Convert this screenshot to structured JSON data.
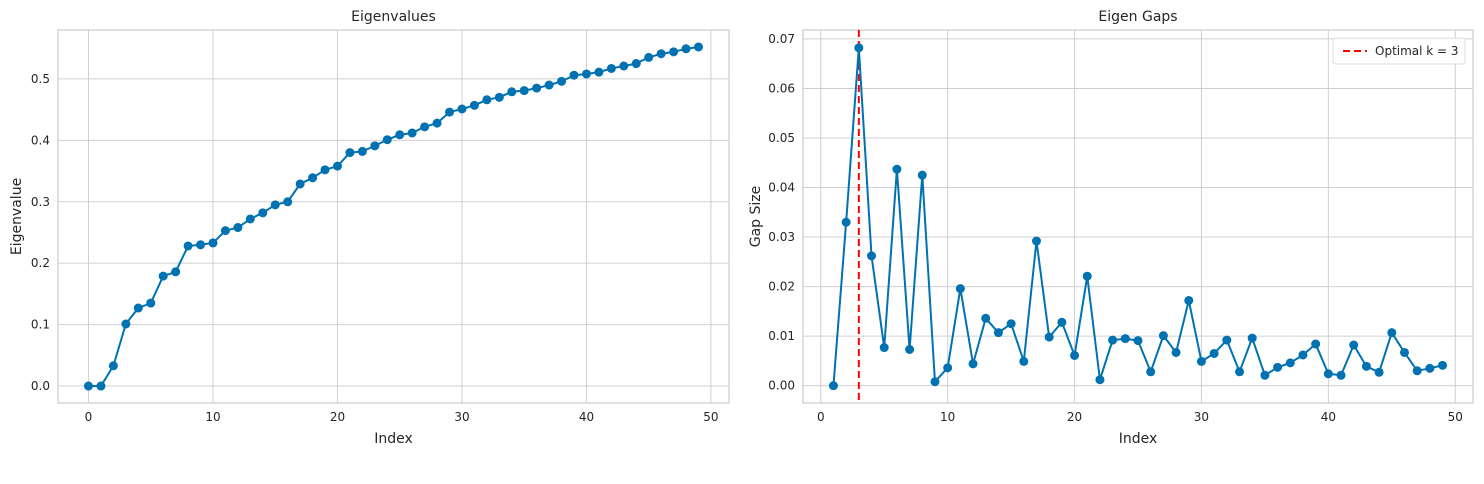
{
  "chart_data": [
    {
      "type": "line",
      "title": "Eigenvalues",
      "xlabel": "Index",
      "ylabel": "Eigenvalue",
      "xlim": [
        -2.45,
        51.45
      ],
      "ylim": [
        -0.0276,
        0.5796
      ],
      "xticks": [
        0,
        10,
        20,
        30,
        40,
        50
      ],
      "xtick_labels": [
        "0",
        "10",
        "20",
        "30",
        "40",
        "50"
      ],
      "yticks": [
        0.0,
        0.1,
        0.2,
        0.3,
        0.4,
        0.5
      ],
      "ytick_labels": [
        "0.0",
        "0.1",
        "0.2",
        "0.3",
        "0.4",
        "0.5"
      ],
      "grid": true,
      "series": [
        {
          "color": "#0072b2",
          "marker": "circle",
          "x": [
            0,
            1,
            2,
            3,
            4,
            5,
            6,
            7,
            8,
            9,
            10,
            11,
            12,
            13,
            14,
            15,
            16,
            17,
            18,
            19,
            20,
            21,
            22,
            23,
            24,
            25,
            26,
            27,
            28,
            29,
            30,
            31,
            32,
            33,
            34,
            35,
            36,
            37,
            38,
            39,
            40,
            41,
            42,
            43,
            44,
            45,
            46,
            47,
            48,
            49
          ],
          "y": [
            0.0,
            0.0,
            0.033,
            0.101,
            0.127,
            0.135,
            0.179,
            0.186,
            0.228,
            0.23,
            0.233,
            0.253,
            0.258,
            0.272,
            0.282,
            0.295,
            0.3,
            0.329,
            0.339,
            0.352,
            0.358,
            0.38,
            0.382,
            0.391,
            0.401,
            0.409,
            0.412,
            0.422,
            0.428,
            0.446,
            0.451,
            0.457,
            0.466,
            0.47,
            0.479,
            0.481,
            0.485,
            0.49,
            0.496,
            0.506,
            0.508,
            0.511,
            0.517,
            0.521,
            0.525,
            0.535,
            0.541,
            0.544,
            0.549,
            0.552
          ]
        }
      ]
    },
    {
      "type": "line",
      "title": "Eigen Gaps",
      "xlabel": "Index",
      "ylabel": "Gap Size",
      "xlim": [
        -1.4,
        51.4
      ],
      "ylim": [
        -0.0035,
        0.0718
      ],
      "xticks": [
        0,
        10,
        20,
        30,
        40,
        50
      ],
      "xtick_labels": [
        "0",
        "10",
        "20",
        "30",
        "40",
        "50"
      ],
      "yticks": [
        0.0,
        0.01,
        0.02,
        0.03,
        0.04,
        0.05,
        0.06,
        0.07
      ],
      "ytick_labels": [
        "0.00",
        "0.01",
        "0.02",
        "0.03",
        "0.04",
        "0.05",
        "0.06",
        "0.07"
      ],
      "grid": true,
      "legend_position": "top-right",
      "vline": {
        "x": 3,
        "label": "Optimal k = 3",
        "color": "#ff0000",
        "style": "dashed"
      },
      "series": [
        {
          "color": "#0072b2",
          "marker": "circle",
          "x": [
            1,
            2,
            3,
            4,
            5,
            6,
            7,
            8,
            9,
            10,
            11,
            12,
            13,
            14,
            15,
            16,
            17,
            18,
            19,
            20,
            21,
            22,
            23,
            24,
            25,
            26,
            27,
            28,
            29,
            30,
            31,
            32,
            33,
            34,
            35,
            36,
            37,
            38,
            39,
            40,
            41,
            42,
            43,
            44,
            45,
            46,
            47,
            48,
            49
          ],
          "y": [
            0.0,
            0.033,
            0.0682,
            0.0262,
            0.0077,
            0.0437,
            0.0073,
            0.0425,
            0.0008,
            0.0036,
            0.0196,
            0.0044,
            0.0136,
            0.0107,
            0.0125,
            0.0049,
            0.0292,
            0.0098,
            0.0128,
            0.0061,
            0.0221,
            0.0012,
            0.0092,
            0.0095,
            0.0091,
            0.0028,
            0.0101,
            0.0067,
            0.0172,
            0.0049,
            0.0065,
            0.0092,
            0.0028,
            0.0096,
            0.0021,
            0.0037,
            0.0046,
            0.0062,
            0.0084,
            0.0024,
            0.0021,
            0.0082,
            0.0039,
            0.0027,
            0.0107,
            0.0067,
            0.003,
            0.0035,
            0.0041
          ]
        }
      ]
    }
  ]
}
